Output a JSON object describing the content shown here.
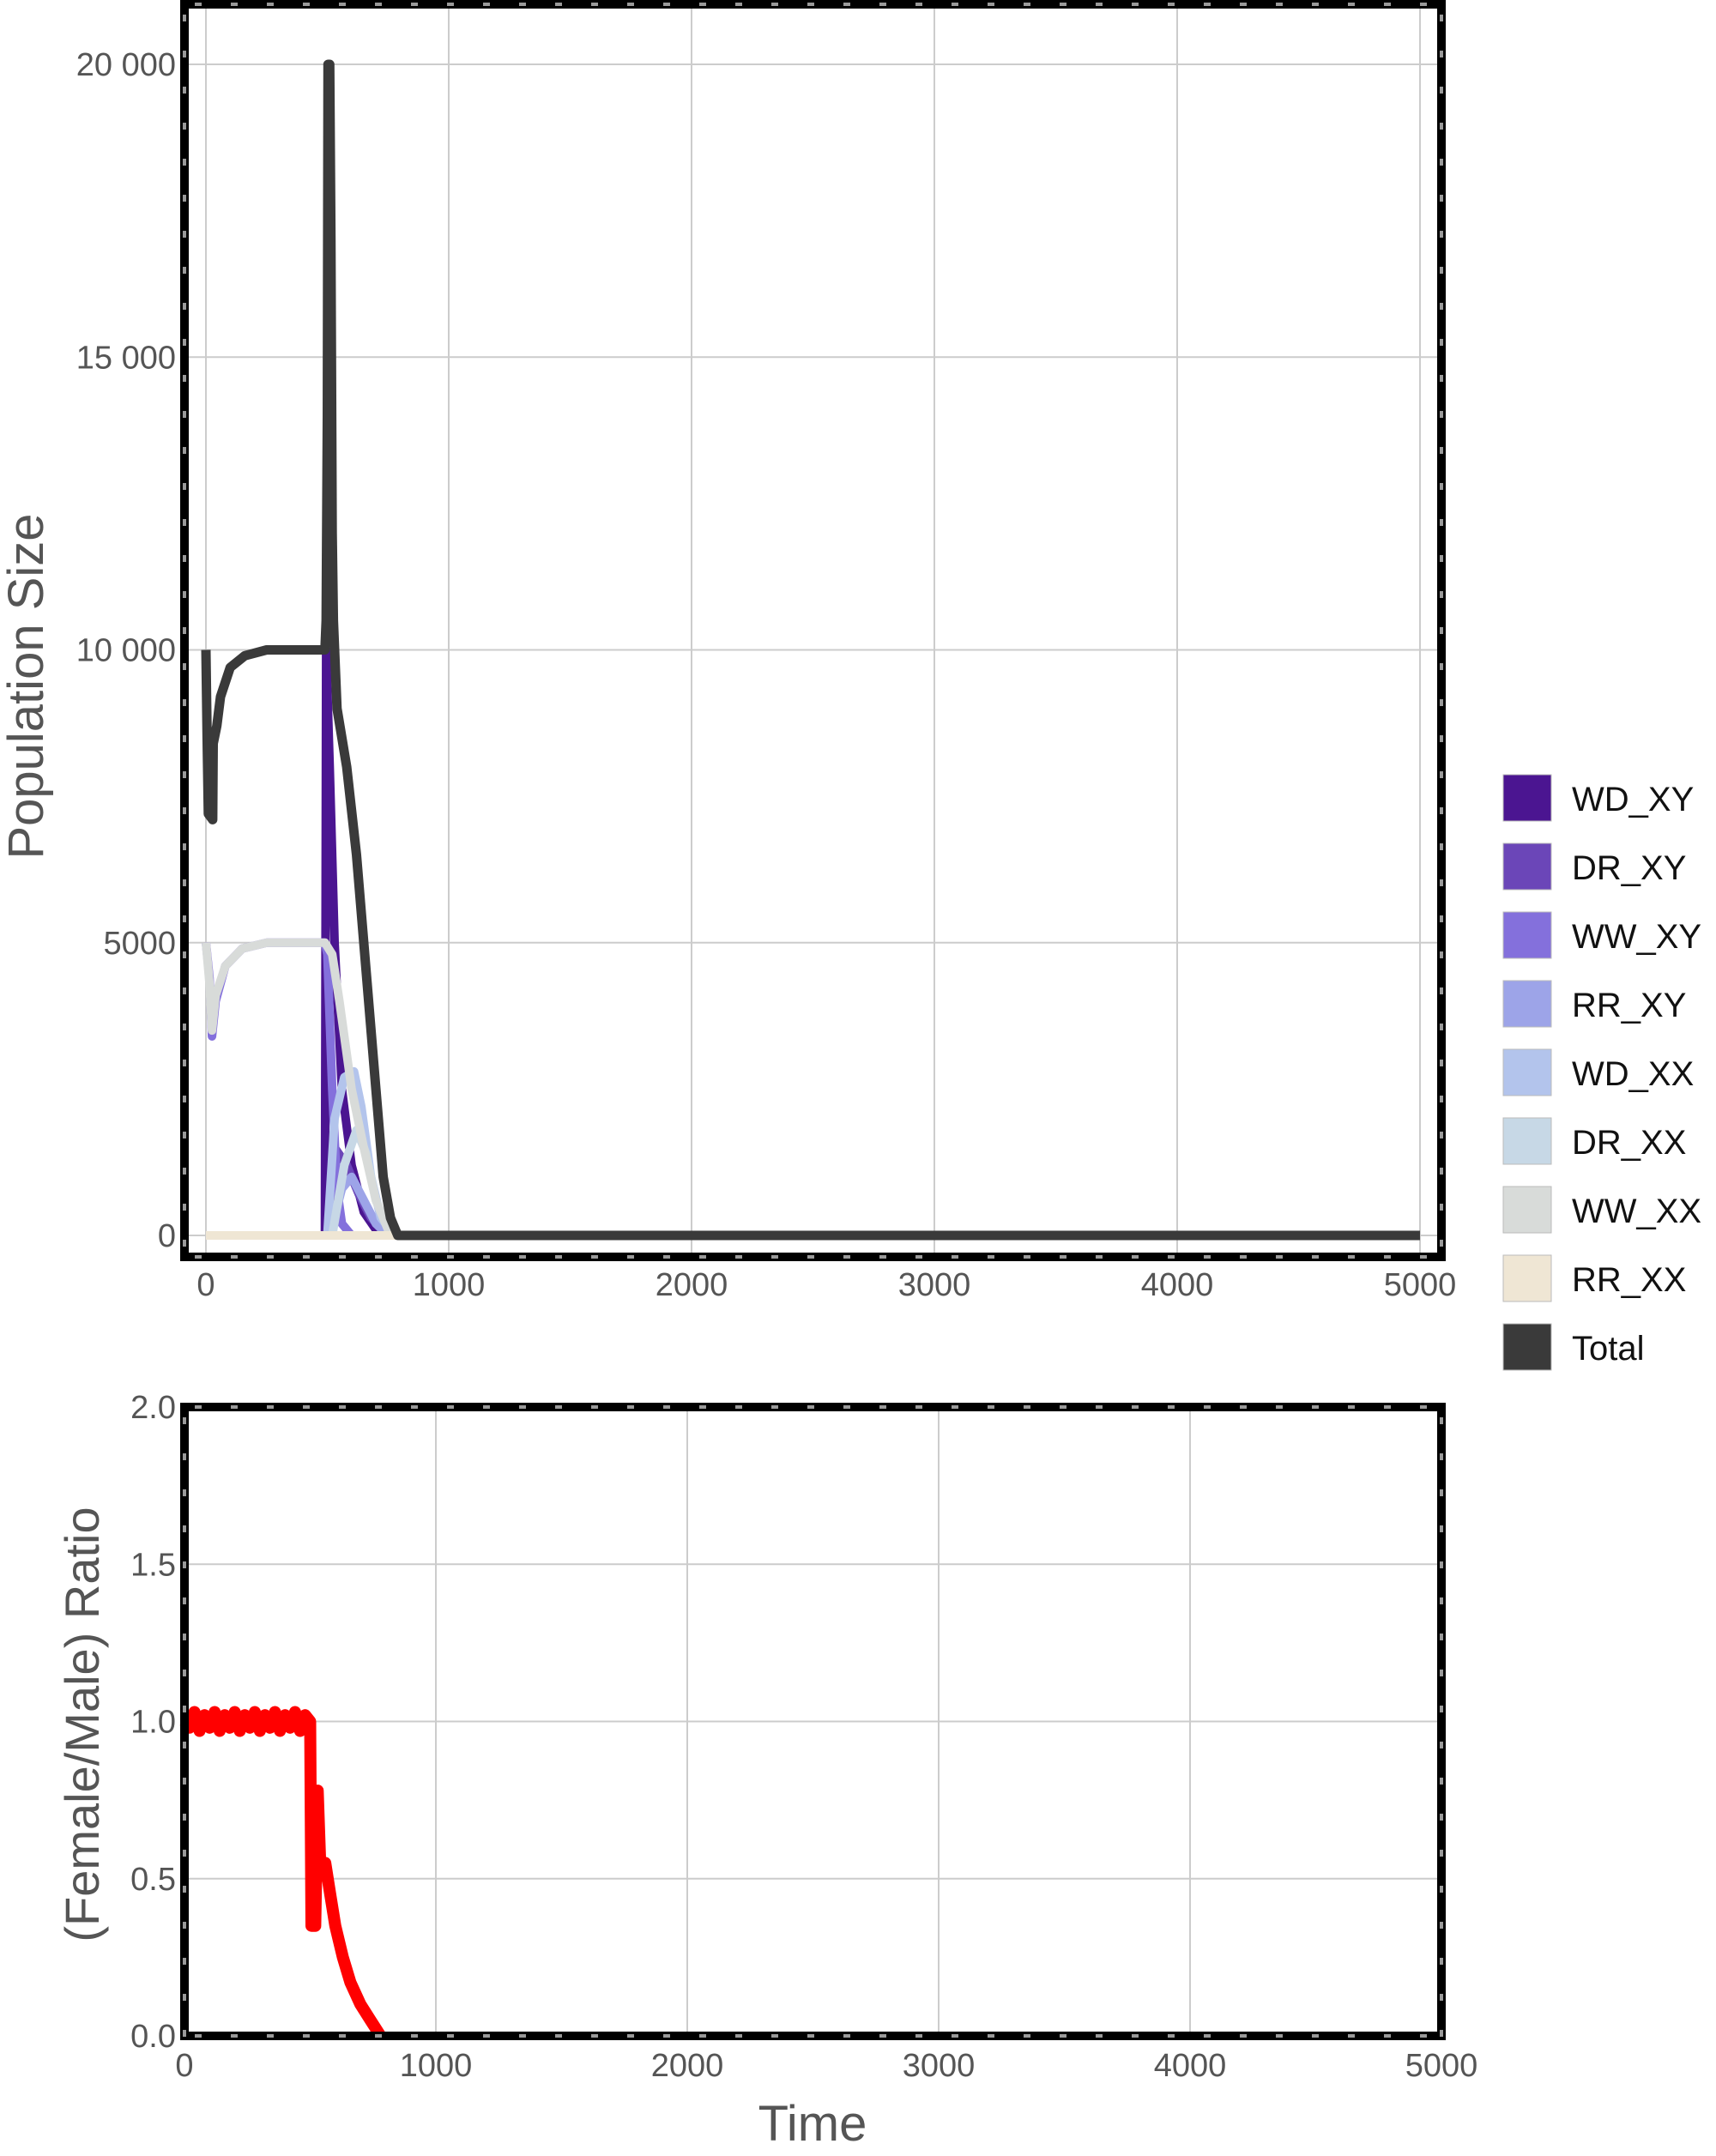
{
  "chart_data": [
    {
      "type": "line",
      "title": "",
      "xlabel": "",
      "ylabel": "Population Size",
      "xlim": [
        0,
        5000
      ],
      "ylim": [
        0,
        20000
      ],
      "xticks": [
        0,
        1000,
        2000,
        3000,
        4000,
        5000
      ],
      "xtick_labels": [
        "0",
        "1000",
        "2000",
        "3000",
        "4000",
        "5000"
      ],
      "yticks": [
        0,
        5000,
        10000,
        15000,
        20000
      ],
      "ytick_labels": [
        "0",
        "5000",
        "10 000",
        "15 000",
        "20 000"
      ],
      "grid": true,
      "legend": "right",
      "series": [
        {
          "name": "WD_XY",
          "color": "#4b1591",
          "points": [
            [
              0,
              0
            ],
            [
              490,
              0
            ],
            [
              495,
              10000
            ],
            [
              510,
              8000
            ],
            [
              530,
              5000
            ],
            [
              560,
              2500
            ],
            [
              600,
              1200
            ],
            [
              650,
              400
            ],
            [
              700,
              100
            ],
            [
              760,
              0
            ],
            [
              5000,
              0
            ]
          ]
        },
        {
          "name": "DR_XY",
          "color": "#6b46b8",
          "points": [
            [
              0,
              0
            ],
            [
              500,
              0
            ],
            [
              530,
              1500
            ],
            [
              580,
              1200
            ],
            [
              630,
              700
            ],
            [
              680,
              300
            ],
            [
              730,
              80
            ],
            [
              780,
              0
            ],
            [
              5000,
              0
            ]
          ]
        },
        {
          "name": "WW_XY",
          "color": "#8470dc",
          "points": [
            [
              0,
              5000
            ],
            [
              15,
              4400
            ],
            [
              25,
              3400
            ],
            [
              40,
              4000
            ],
            [
              80,
              4600
            ],
            [
              150,
              4900
            ],
            [
              250,
              5000
            ],
            [
              400,
              5000
            ],
            [
              490,
              5000
            ],
            [
              500,
              4800
            ],
            [
              520,
              2500
            ],
            [
              540,
              800
            ],
            [
              560,
              200
            ],
            [
              600,
              0
            ],
            [
              5000,
              0
            ]
          ]
        },
        {
          "name": "RR_XY",
          "color": "#9da4e8",
          "points": [
            [
              0,
              0
            ],
            [
              510,
              0
            ],
            [
              560,
              800
            ],
            [
              600,
              1000
            ],
            [
              650,
              600
            ],
            [
              700,
              200
            ],
            [
              750,
              0
            ],
            [
              5000,
              0
            ]
          ]
        },
        {
          "name": "WD_XX",
          "color": "#b3c4ec",
          "points": [
            [
              0,
              0
            ],
            [
              500,
              0
            ],
            [
              530,
              2000
            ],
            [
              570,
              2700
            ],
            [
              610,
              2800
            ],
            [
              640,
              2200
            ],
            [
              680,
              1000
            ],
            [
              720,
              300
            ],
            [
              780,
              0
            ],
            [
              5000,
              0
            ]
          ]
        },
        {
          "name": "DR_XX",
          "color": "#c7d8e6",
          "points": [
            [
              0,
              0
            ],
            [
              520,
              0
            ],
            [
              570,
              1200
            ],
            [
              620,
              1800
            ],
            [
              660,
              1400
            ],
            [
              700,
              600
            ],
            [
              750,
              100
            ],
            [
              800,
              0
            ],
            [
              5000,
              0
            ]
          ]
        },
        {
          "name": "WW_XX",
          "color": "#d8dbd9",
          "points": [
            [
              0,
              5000
            ],
            [
              15,
              4300
            ],
            [
              25,
              3500
            ],
            [
              40,
              4100
            ],
            [
              80,
              4600
            ],
            [
              150,
              4900
            ],
            [
              250,
              5000
            ],
            [
              400,
              5000
            ],
            [
              490,
              5000
            ],
            [
              520,
              4800
            ],
            [
              550,
              4000
            ],
            [
              600,
              2500
            ],
            [
              650,
              1500
            ],
            [
              700,
              600
            ],
            [
              750,
              100
            ],
            [
              790,
              0
            ],
            [
              5000,
              0
            ]
          ]
        },
        {
          "name": "RR_XX",
          "color": "#efe6d4",
          "points": [
            [
              0,
              0
            ],
            [
              5000,
              0
            ]
          ]
        },
        {
          "name": "Total",
          "color": "#3a3a3a",
          "points": [
            [
              0,
              10000
            ],
            [
              5,
              8500
            ],
            [
              10,
              7200
            ],
            [
              28,
              7100
            ],
            [
              30,
              8400
            ],
            [
              45,
              8700
            ],
            [
              60,
              9200
            ],
            [
              100,
              9700
            ],
            [
              160,
              9900
            ],
            [
              250,
              10000
            ],
            [
              400,
              10000
            ],
            [
              490,
              10000
            ],
            [
              495,
              10500
            ],
            [
              500,
              14000
            ],
            [
              503,
              20000
            ],
            [
              510,
              20000
            ],
            [
              515,
              17000
            ],
            [
              520,
              12000
            ],
            [
              525,
              10500
            ],
            [
              540,
              9000
            ],
            [
              580,
              8000
            ],
            [
              620,
              6500
            ],
            [
              660,
              4500
            ],
            [
              700,
              2500
            ],
            [
              730,
              1000
            ],
            [
              760,
              300
            ],
            [
              790,
              0
            ],
            [
              5000,
              0
            ]
          ]
        }
      ]
    },
    {
      "type": "line",
      "title": "",
      "xlabel": "Time",
      "ylabel": "(Female/Male) Ratio",
      "xlim": [
        0,
        5000
      ],
      "ylim": [
        0,
        2
      ],
      "xticks": [
        0,
        1000,
        2000,
        3000,
        4000,
        5000
      ],
      "xtick_labels": [
        "0",
        "1000",
        "2000",
        "3000",
        "4000",
        "5000"
      ],
      "yticks": [
        0,
        0.5,
        1,
        1.5,
        2
      ],
      "ytick_labels": [
        "0.0",
        "0.5",
        "1.0",
        "1.5",
        "2.0"
      ],
      "grid": true,
      "series": [
        {
          "color": "#ff0000",
          "points": [
            [
              0,
              1.0
            ],
            [
              20,
              0.98
            ],
            [
              40,
              1.03
            ],
            [
              60,
              0.97
            ],
            [
              80,
              1.02
            ],
            [
              100,
              0.98
            ],
            [
              120,
              1.03
            ],
            [
              140,
              0.97
            ],
            [
              160,
              1.02
            ],
            [
              180,
              0.98
            ],
            [
              200,
              1.03
            ],
            [
              220,
              0.97
            ],
            [
              240,
              1.02
            ],
            [
              260,
              0.98
            ],
            [
              280,
              1.03
            ],
            [
              300,
              0.97
            ],
            [
              320,
              1.02
            ],
            [
              340,
              0.98
            ],
            [
              360,
              1.03
            ],
            [
              380,
              0.97
            ],
            [
              400,
              1.02
            ],
            [
              420,
              0.98
            ],
            [
              440,
              1.03
            ],
            [
              460,
              0.97
            ],
            [
              480,
              1.02
            ],
            [
              500,
              1.0
            ],
            [
              505,
              0.35
            ],
            [
              520,
              0.35
            ],
            [
              530,
              0.78
            ],
            [
              540,
              0.55
            ],
            [
              560,
              0.55
            ],
            [
              580,
              0.45
            ],
            [
              600,
              0.35
            ],
            [
              630,
              0.25
            ],
            [
              660,
              0.17
            ],
            [
              700,
              0.1
            ],
            [
              740,
              0.05
            ],
            [
              780,
              0.0
            ]
          ]
        }
      ]
    }
  ]
}
